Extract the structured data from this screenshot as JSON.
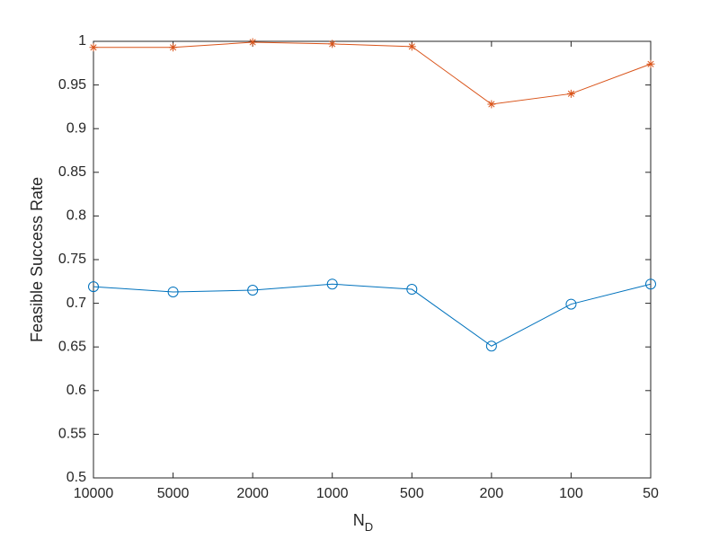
{
  "chart_data": {
    "type": "line",
    "x_label": "N",
    "x_label_subscript": "D",
    "y_label": "Feasible Success Rate",
    "categories": [
      "10000",
      "5000",
      "2000",
      "1000",
      "500",
      "200",
      "100",
      "50"
    ],
    "series": [
      {
        "color": "#D95319",
        "marker": "star",
        "values": [
          0.993,
          0.993,
          0.999,
          0.997,
          0.994,
          0.928,
          0.94,
          0.974
        ]
      },
      {
        "color": "#0072BD",
        "marker": "circle",
        "values": [
          0.719,
          0.713,
          0.715,
          0.722,
          0.716,
          0.651,
          0.699,
          0.722
        ]
      }
    ],
    "ylim": [
      0.5,
      1
    ],
    "yticks": [
      0.5,
      0.55,
      0.6,
      0.65,
      0.7,
      0.75,
      0.8,
      0.85,
      0.9,
      0.95,
      1
    ],
    "grid": false,
    "box": true
  }
}
